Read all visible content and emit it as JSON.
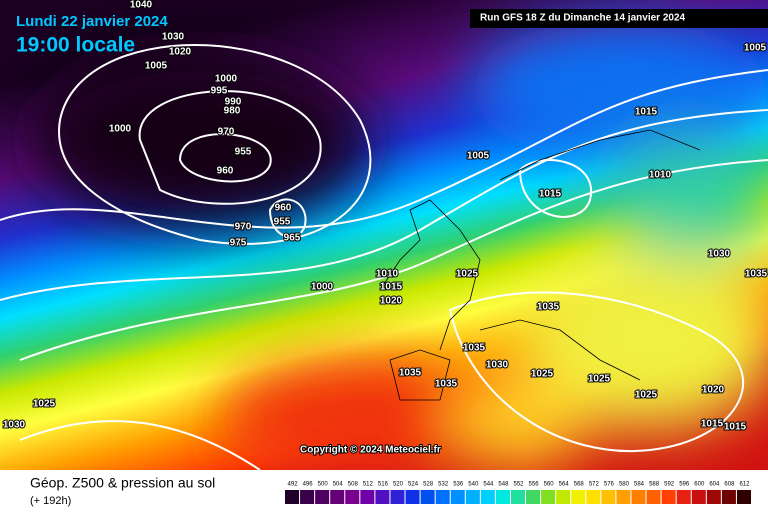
{
  "header": {
    "date": "Lundi 22 janvier 2024",
    "time": "19:00 locale",
    "run": "Run GFS 18 Z du Dimanche 14 janvier 2024"
  },
  "copyright": "Copyright © 2024 Meteociel.fr",
  "footer": {
    "title": "Géop. Z500 & pression au sol",
    "subtitle": "(+ 192h)"
  },
  "scale": {
    "values": [
      492,
      496,
      500,
      504,
      508,
      512,
      516,
      520,
      524,
      528,
      532,
      536,
      540,
      544,
      548,
      552,
      556,
      560,
      564,
      568,
      572,
      576,
      580,
      584,
      588,
      592,
      596,
      600,
      604,
      608,
      612
    ]
  },
  "isobar_labels": [
    "1040",
    "1030",
    "1020",
    "1005",
    "1000",
    "995",
    "990",
    "980",
    "970",
    "1000",
    "955",
    "960",
    "960",
    "955",
    "965",
    "970",
    "975",
    "1000",
    "1010",
    "1015",
    "1020",
    "1025",
    "1005",
    "1015",
    "1015",
    "1010",
    "1005",
    "1030",
    "1035",
    "1035",
    "1035",
    "1030",
    "1025",
    "1025",
    "1035",
    "1035",
    "1025",
    "1020",
    "1015",
    "1015",
    "1025",
    "1030"
  ]
}
